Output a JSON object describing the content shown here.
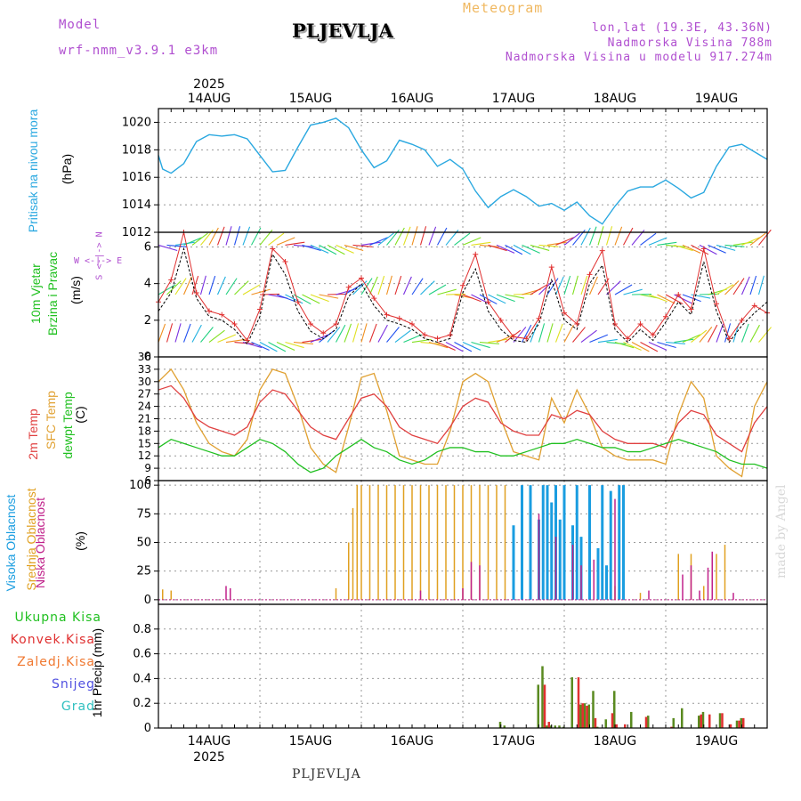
{
  "header": {
    "model_label": "Model",
    "model_name": "wrf-nmm_v3.9.1 e3km",
    "station": "PLJEVLJA",
    "meteogram": "Meteogram",
    "lonlat": "lon,lat (19.3E, 43.36N)",
    "elevation": "Nadmorska Visina 788m",
    "model_elevation": "Nadmorska Visina u modelu 917.274m"
  },
  "footer": {
    "station": "PLJEVLJA",
    "credit": "made by Angel"
  },
  "colors": {
    "pressure": "#2aa8e0",
    "wind_speed": "#e03030",
    "gust": "#000000",
    "temp2m": "#e04040",
    "sfc": "#e0a030",
    "dewpt": "#20c020",
    "high_cloud": "#1a9de0",
    "mid_cloud": "#e0a020",
    "low_cloud": "#c0208a",
    "total_precip": "#5a8a20",
    "conv_precip": "#e03030"
  },
  "chart_data": [
    {
      "type": "line",
      "id": "pressure",
      "ylabel_title": "Pritisak na nivou mora",
      "unit": "(hPa)",
      "ylim": [
        1012,
        1021
      ],
      "yticks": [
        1012,
        1014,
        1016,
        1018,
        1020
      ],
      "year": "2025",
      "x_day_labels": [
        "14AUG",
        "15AUG",
        "16AUG",
        "17AUG",
        "18AUG",
        "19AUG"
      ],
      "x_start_hour": -6,
      "series": [
        {
          "name": "Sea level pressure",
          "x": [
            -6,
            -5,
            -3,
            0,
            3,
            6,
            9,
            12,
            15,
            18,
            21,
            24,
            27,
            30,
            33,
            36,
            39,
            42,
            45,
            48,
            51,
            54,
            57,
            60,
            63,
            66,
            69,
            72,
            75,
            78,
            81,
            84,
            87,
            90,
            93,
            96,
            99,
            102,
            105,
            108,
            111,
            114,
            117,
            120,
            123,
            126,
            129,
            132,
            138
          ],
          "y": [
            1017.6,
            1016.6,
            1016.3,
            1017.0,
            1018.6,
            1019.1,
            1019.0,
            1019.1,
            1018.8,
            1017.6,
            1016.4,
            1016.5,
            1018.2,
            1019.8,
            1020.0,
            1020.3,
            1019.6,
            1018.0,
            1016.7,
            1017.2,
            1018.7,
            1018.4,
            1018.0,
            1016.8,
            1017.3,
            1016.6,
            1015.0,
            1013.8,
            1014.6,
            1015.1,
            1014.6,
            1013.9,
            1014.1,
            1013.6,
            1014.2,
            1013.2,
            1012.6,
            1013.9,
            1015.0,
            1015.3,
            1015.3,
            1015.8,
            1015.2,
            1014.5,
            1014.9,
            1016.8,
            1018.2,
            1018.4,
            1017.3
          ]
        }
      ]
    },
    {
      "type": "line",
      "id": "wind",
      "ylabel_title": "10m Vjetar",
      "ylabel_sub": "Brzina i Pravac",
      "unit": "(m/s)",
      "compass": "W <-|-> E",
      "compass_v": "S <-|-> N",
      "ylim": [
        0,
        6.8
      ],
      "yticks": [
        0,
        2,
        4,
        6
      ],
      "series": [
        {
          "name": "Wind gust",
          "x": [
            -6,
            -3,
            0,
            3,
            6,
            9,
            12,
            15,
            18,
            21,
            24,
            27,
            30,
            33,
            36,
            39,
            42,
            45,
            48,
            51,
            54,
            57,
            60,
            63,
            66,
            69,
            72,
            75,
            78,
            81,
            84,
            87,
            90,
            93,
            96,
            99,
            102,
            105,
            108,
            111,
            114,
            117,
            120,
            123,
            126,
            129,
            132,
            135,
            138
          ],
          "y": [
            2.5,
            3.5,
            5.9,
            3.2,
            2.2,
            2.0,
            1.5,
            0.7,
            2.2,
            5.6,
            4.5,
            2.5,
            1.4,
            1.0,
            1.5,
            3.3,
            4.0,
            2.8,
            2.0,
            1.8,
            1.5,
            1.0,
            0.8,
            1.0,
            3.5,
            4.8,
            2.5,
            1.5,
            0.9,
            0.8,
            1.8,
            4.2,
            2.0,
            1.5,
            4.0,
            5.0,
            1.5,
            0.8,
            1.5,
            0.9,
            1.9,
            3.0,
            2.3,
            5.2,
            2.5,
            0.8,
            1.7,
            2.4,
            3.0
          ]
        },
        {
          "name": "Wind speed",
          "x": [
            -6,
            -3,
            0,
            3,
            6,
            9,
            12,
            15,
            18,
            21,
            24,
            27,
            30,
            33,
            36,
            39,
            42,
            45,
            48,
            51,
            54,
            57,
            60,
            63,
            66,
            69,
            72,
            75,
            78,
            81,
            84,
            87,
            90,
            93,
            96,
            99,
            102,
            105,
            108,
            111,
            114,
            117,
            120,
            123,
            126,
            129,
            132,
            135,
            138
          ],
          "y": [
            3.0,
            4.2,
            6.8,
            3.5,
            2.5,
            2.3,
            1.8,
            0.9,
            2.6,
            5.9,
            5.2,
            3.0,
            1.8,
            1.3,
            1.8,
            3.8,
            4.3,
            3.2,
            2.3,
            2.1,
            1.8,
            1.2,
            1.0,
            1.2,
            3.9,
            5.6,
            3.0,
            2.0,
            1.1,
            1.0,
            2.1,
            4.9,
            2.4,
            1.8,
            4.5,
            5.8,
            1.8,
            1.0,
            1.8,
            1.2,
            2.2,
            3.4,
            2.6,
            5.9,
            2.9,
            1.0,
            2.0,
            2.8,
            2.4
          ]
        }
      ]
    },
    {
      "type": "line",
      "id": "temperature",
      "ylabel_a": "2m Temp",
      "ylabel_b": "SFC Temp",
      "ylabel_c": "dewpt Temp",
      "unit": "(C)",
      "ylim": [
        6,
        36
      ],
      "yticks": [
        6,
        9,
        12,
        15,
        18,
        21,
        24,
        27,
        30,
        33,
        36
      ],
      "series": [
        {
          "name": "SFC Temp",
          "x": [
            -6,
            -3,
            0,
            3,
            6,
            9,
            12,
            15,
            18,
            21,
            24,
            27,
            30,
            33,
            36,
            39,
            42,
            45,
            48,
            51,
            54,
            57,
            60,
            63,
            66,
            69,
            72,
            75,
            78,
            81,
            84,
            87,
            90,
            93,
            96,
            99,
            102,
            105,
            108,
            111,
            114,
            117,
            120,
            123,
            126,
            129,
            132,
            135,
            138
          ],
          "y": [
            30,
            33,
            28,
            20,
            15,
            13,
            12,
            16,
            28,
            33,
            32,
            24,
            14,
            10,
            8,
            19,
            31,
            32,
            23,
            12,
            11,
            10,
            10,
            18,
            30,
            32,
            30,
            21,
            13,
            12,
            11,
            26,
            20,
            28,
            22,
            14,
            12,
            11,
            11,
            11,
            10,
            22,
            30,
            26,
            12,
            9,
            7,
            24,
            30
          ]
        },
        {
          "name": "2m Temp",
          "x": [
            -6,
            -3,
            0,
            3,
            6,
            9,
            12,
            15,
            18,
            21,
            24,
            27,
            30,
            33,
            36,
            39,
            42,
            45,
            48,
            51,
            54,
            57,
            60,
            63,
            66,
            69,
            72,
            75,
            78,
            81,
            84,
            87,
            90,
            93,
            96,
            99,
            102,
            105,
            108,
            111,
            114,
            117,
            120,
            123,
            126,
            129,
            132,
            135,
            138
          ],
          "y": [
            28,
            29,
            26,
            21,
            19,
            18,
            17,
            19,
            25,
            28,
            27,
            23,
            19,
            17,
            16,
            21,
            26,
            27,
            24,
            19,
            17,
            16,
            15,
            19,
            24,
            26,
            25,
            20,
            18,
            17,
            17,
            22,
            21,
            23,
            22,
            18,
            16,
            15,
            15,
            15,
            14,
            20,
            23,
            22,
            17,
            15,
            13,
            20,
            24
          ]
        },
        {
          "name": "dewpt Temp",
          "x": [
            -6,
            -3,
            0,
            3,
            6,
            9,
            12,
            15,
            18,
            21,
            24,
            27,
            30,
            33,
            36,
            39,
            42,
            45,
            48,
            51,
            54,
            57,
            60,
            63,
            66,
            69,
            72,
            75,
            78,
            81,
            84,
            87,
            90,
            93,
            96,
            99,
            102,
            105,
            108,
            111,
            114,
            117,
            120,
            123,
            126,
            129,
            132,
            135,
            138
          ],
          "y": [
            14,
            16,
            15,
            14,
            13,
            12,
            12,
            14,
            16,
            15,
            13,
            10,
            8,
            9,
            12,
            14,
            16,
            14,
            13,
            11,
            10,
            11,
            13,
            14,
            14,
            13,
            13,
            12,
            12,
            13,
            14,
            15,
            15,
            16,
            15,
            14,
            14,
            13,
            13,
            14,
            15,
            16,
            15,
            14,
            13,
            11,
            10,
            10,
            9
          ]
        }
      ]
    },
    {
      "type": "bar",
      "id": "clouds",
      "ylabel_a": "Visoka Oblacnost",
      "ylabel_b": "Srednja Oblacnost",
      "ylabel_c": "Niska Oblacnost",
      "unit": "(%)",
      "ylim": [
        -4,
        104
      ],
      "yticks": [
        0,
        25,
        50,
        75,
        100
      ],
      "series": [
        {
          "name": "Srednja Oblacnost",
          "x": [
            -5,
            -3,
            36,
            39,
            40,
            41,
            42,
            44,
            46,
            48,
            50,
            52,
            54,
            56,
            58,
            60,
            62,
            64,
            66,
            68,
            70,
            72,
            74,
            76,
            102,
            104,
            108,
            117,
            120,
            123,
            126,
            128
          ],
          "y": [
            9,
            8,
            10,
            50,
            80,
            100,
            100,
            100,
            100,
            100,
            100,
            100,
            100,
            100,
            100,
            100,
            100,
            100,
            100,
            100,
            100,
            100,
            100,
            100,
            12,
            8,
            6,
            40,
            40,
            12,
            40,
            48
          ]
        },
        {
          "name": "Visoka Oblacnost",
          "x": [
            78,
            80,
            82,
            84,
            85,
            86,
            87,
            88,
            89,
            90,
            92,
            93,
            94,
            96,
            98,
            99,
            100,
            101,
            103,
            104
          ],
          "y": [
            65,
            100,
            100,
            70,
            100,
            100,
            85,
            100,
            70,
            100,
            65,
            100,
            55,
            100,
            45,
            100,
            30,
            95,
            100,
            100
          ]
        },
        {
          "name": "Niska Oblacnost",
          "x": [
            10,
            11,
            56,
            66,
            68,
            70,
            84,
            88,
            92,
            94,
            97,
            102,
            110,
            118,
            120,
            122,
            124,
            125,
            130
          ],
          "y": [
            12,
            10,
            8,
            10,
            33,
            30,
            75,
            55,
            48,
            30,
            35,
            88,
            8,
            22,
            30,
            8,
            28,
            42,
            6
          ]
        }
      ]
    },
    {
      "type": "bar",
      "id": "precip",
      "unit": "1hr Precip (mm)",
      "ylim": [
        0,
        1.0
      ],
      "yticks": [
        0,
        0.2,
        0.4,
        0.6,
        0.8
      ],
      "legend": [
        "Ukupna Kisa",
        "Konvek.Kisa",
        "Zaledj.Kisa",
        "Snijeg",
        "Grad"
      ],
      "series": [
        {
          "name": "Ukupna Kisa",
          "x": [
            75,
            76,
            84,
            85,
            86,
            87,
            88,
            89,
            90,
            92,
            94,
            95,
            96,
            97,
            98,
            100,
            102,
            106,
            110,
            116,
            118,
            122,
            123,
            127,
            131,
            132
          ],
          "y": [
            0.05,
            0.02,
            0.35,
            0.5,
            0.02,
            0.02,
            0.02,
            0.02,
            0.01,
            0.41,
            0.19,
            0.2,
            0.19,
            0.3,
            0.01,
            0.07,
            0.3,
            0.13,
            0.1,
            0.08,
            0.16,
            0.1,
            0.13,
            0.12,
            0.06,
            0.08
          ]
        },
        {
          "name": "Konvek.Kisa",
          "x": [
            85,
            86,
            93,
            94,
            95,
            97,
            101,
            102,
            104,
            109,
            115,
            122,
            124,
            127,
            129,
            131,
            132
          ],
          "y": [
            0.35,
            0.05,
            0.41,
            0.2,
            0.18,
            0.08,
            0.12,
            0.03,
            0.03,
            0.09,
            0.01,
            0.11,
            0.11,
            0.12,
            0.03,
            0.06,
            0.08
          ]
        }
      ]
    }
  ]
}
